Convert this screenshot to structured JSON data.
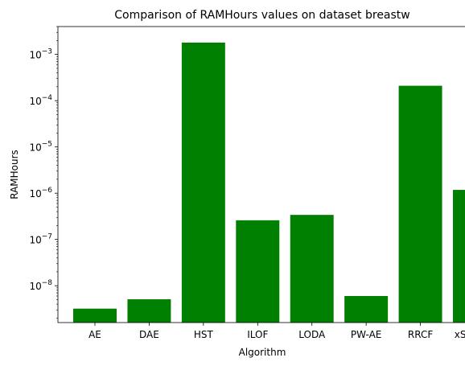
{
  "chart_data": {
    "type": "bar",
    "title": "Comparison of RAMHours values on dataset breastw",
    "xlabel": "Algorithm",
    "ylabel": "RAMHours",
    "yscale": "log",
    "ylim": [
      1.6e-09,
      0.004
    ],
    "grid": false,
    "bar_color": "#008000",
    "categories": [
      "AE",
      "DAE",
      "HST",
      "ILOF",
      "LODA",
      "PW-AE",
      "RRCF",
      "xStream"
    ],
    "values": [
      3.2e-09,
      5.1e-09,
      0.0018,
      2.6e-07,
      3.4e-07,
      6e-09,
      0.00021,
      1.18e-06
    ],
    "y_ticks": [
      {
        "exp": -8,
        "base": "10",
        "power": "−8"
      },
      {
        "exp": -7,
        "base": "10",
        "power": "−7"
      },
      {
        "exp": -6,
        "base": "10",
        "power": "−6"
      },
      {
        "exp": -5,
        "base": "10",
        "power": "−5"
      },
      {
        "exp": -4,
        "base": "10",
        "power": "−4"
      },
      {
        "exp": -3,
        "base": "10",
        "power": "−3"
      }
    ]
  }
}
